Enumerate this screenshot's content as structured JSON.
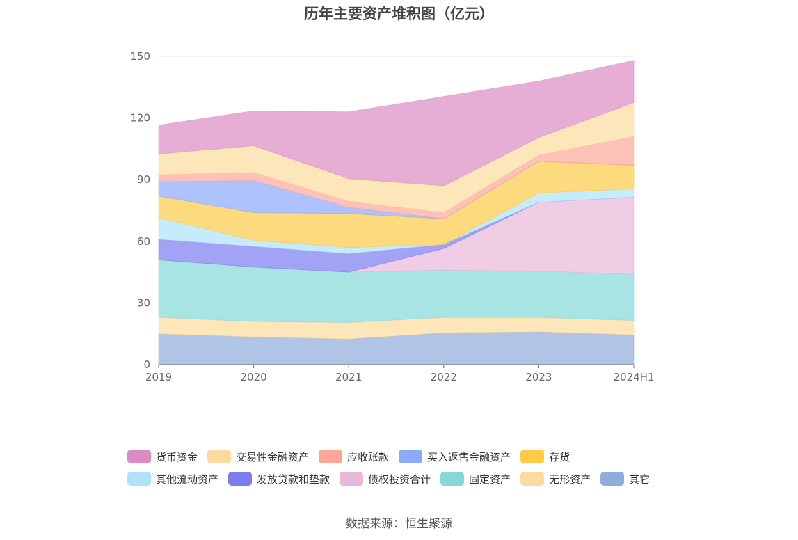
{
  "title": "历年主要资产堆积图（亿元）",
  "source": "数据来源：恒生聚源",
  "chart_data": {
    "type": "area",
    "stacked": true,
    "x": [
      "2019",
      "2020",
      "2021",
      "2022",
      "2023",
      "2024H1"
    ],
    "ylim": [
      0,
      150
    ],
    "yticks": [
      0,
      30,
      60,
      90,
      120,
      150
    ],
    "grid": true,
    "legend_position": "bottom",
    "series": [
      {
        "name": "其它",
        "color": "#8eaddb",
        "values": [
          15,
          13.5,
          12.5,
          15.5,
          16,
          14.5
        ]
      },
      {
        "name": "无形资产",
        "color": "#fddb9e",
        "values": [
          8,
          7.5,
          8,
          7.5,
          7,
          7
        ]
      },
      {
        "name": "固定资产",
        "color": "#85d8d8",
        "values": [
          28,
          26.5,
          24.5,
          23,
          22.5,
          22.5
        ]
      },
      {
        "name": "债权投资合计",
        "color": "#e8b8da",
        "values": [
          0,
          0,
          0,
          10.5,
          33.5,
          37.5
        ]
      },
      {
        "name": "发放贷款和垫款",
        "color": "#7b7cf0",
        "values": [
          10,
          10,
          9,
          2,
          0,
          0
        ]
      },
      {
        "name": "其他流动资产",
        "color": "#aee2f8",
        "values": [
          10.5,
          3,
          3,
          0,
          4.5,
          4
        ]
      },
      {
        "name": "存货",
        "color": "#fdcb48",
        "values": [
          10.5,
          13.5,
          16.5,
          12.5,
          15.5,
          11.5
        ]
      },
      {
        "name": "买入返售金融资产",
        "color": "#8caafc",
        "values": [
          7,
          15.5,
          3,
          0,
          0,
          0
        ]
      },
      {
        "name": "应收账款",
        "color": "#fca69a",
        "values": [
          3.5,
          4,
          3,
          3,
          3,
          14
        ]
      },
      {
        "name": "交易性金融资产",
        "color": "#fddb9e",
        "values": [
          10,
          13,
          11,
          13,
          8.5,
          16.5
        ]
      },
      {
        "name": "货币资金",
        "color": "#db8bc2",
        "values": [
          14,
          17,
          32.5,
          43.5,
          27.5,
          20.5
        ]
      }
    ],
    "legend_order": [
      "货币资金",
      "交易性金融资产",
      "应收账款",
      "买入返售金融资产",
      "存货",
      "其他流动资产",
      "发放贷款和垫款",
      "债权投资合计",
      "固定资产",
      "无形资产",
      "其它"
    ]
  }
}
